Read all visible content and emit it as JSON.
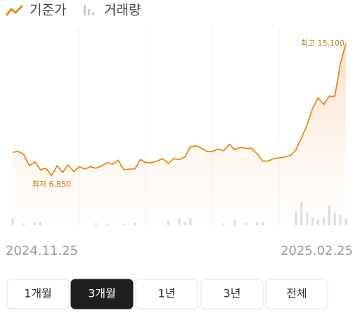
{
  "chart_data": {
    "type": "line",
    "categories": [
      "2024.11.25",
      null,
      null,
      null,
      null,
      null,
      null,
      null,
      null,
      null,
      null,
      null,
      null,
      null,
      null,
      null,
      null,
      null,
      null,
      null,
      null,
      null,
      null,
      null,
      null,
      null,
      null,
      null,
      null,
      null,
      null,
      null,
      null,
      null,
      null,
      null,
      null,
      null,
      null,
      null,
      null,
      null,
      null,
      null,
      null,
      null,
      null,
      null,
      null,
      null,
      null,
      null,
      null,
      null,
      null,
      null,
      null,
      null,
      null,
      null,
      "2025.02.25"
    ],
    "series": [
      {
        "name": "기준가",
        "color": "#e08a1e",
        "values": [
          8300,
          8350,
          8150,
          7450,
          7700,
          7200,
          7300,
          6850,
          7450,
          7050,
          7500,
          7100,
          7400,
          7250,
          7400,
          7300,
          7450,
          7650,
          7550,
          7800,
          7200,
          7250,
          7250,
          7850,
          7650,
          7650,
          7750,
          7900,
          7600,
          7900,
          7850,
          8000,
          8650,
          8700,
          8550,
          8350,
          8350,
          8500,
          8400,
          8800,
          8450,
          8600,
          8550,
          8550,
          8200,
          7750,
          7750,
          7900,
          7950,
          8000,
          8100,
          8450,
          9200,
          10000,
          11050,
          11700,
          11300,
          11800,
          11800,
          13850,
          15100
        ]
      },
      {
        "name": "거래량",
        "color": "#dcdcdc",
        "values": [
          10,
          0,
          3,
          0,
          5,
          5,
          0,
          0,
          0,
          0,
          0,
          0,
          0,
          0,
          0,
          3,
          0,
          2,
          0,
          0,
          2,
          0,
          4,
          0,
          0,
          0,
          0,
          0,
          6,
          0,
          10,
          5,
          10,
          0,
          0,
          0,
          0,
          0,
          3,
          0,
          8,
          0,
          3,
          0,
          5,
          5,
          0,
          0,
          0,
          0,
          0,
          20,
          33,
          18,
          10,
          8,
          12,
          28,
          18,
          15,
          10
        ]
      }
    ],
    "annotations": [
      "최고 15,100",
      "최저 6,850"
    ]
  },
  "range_buttons": [
    "1개월",
    "3개월",
    "1년",
    "3년",
    "전체"
  ],
  "selected_range": "3개월"
}
